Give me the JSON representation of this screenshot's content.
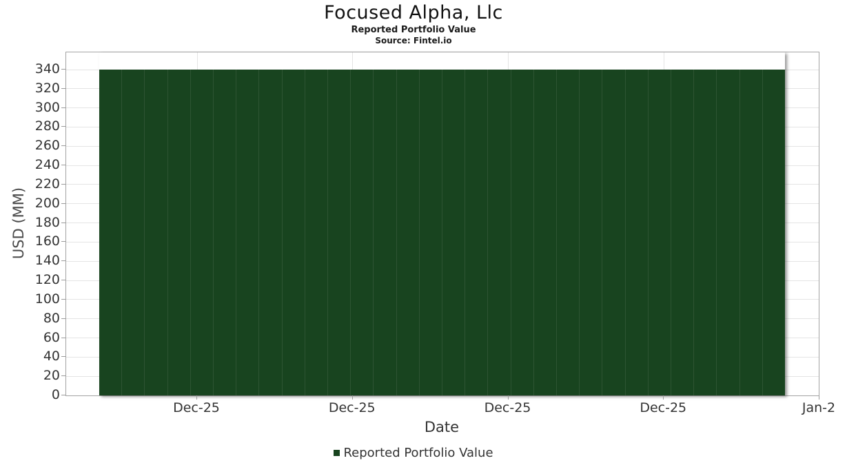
{
  "chart": {
    "title": "Focused Alpha, Llc",
    "subtitle": "Reported Portfolio Value",
    "source": "Source: Fintel.io",
    "xlabel": "Date",
    "ylabel": "USD (MM)",
    "legend_label": "Reported Portfolio Value",
    "colors": {
      "bar": "#18441f",
      "bar_separator": "#2e5433",
      "grid": "#e4e4e4",
      "axis": "#a3a3a3",
      "tick": "#9a9a9a",
      "text": "#333333"
    }
  },
  "chart_data": {
    "type": "bar",
    "title": "Focused Alpha, Llc",
    "subtitle": "Reported Portfolio Value",
    "source": "Source: Fintel.io",
    "xlabel": "Date",
    "ylabel": "USD (MM)",
    "ylim": [
      0,
      340
    ],
    "ytick_step": 20,
    "yticks": [
      0,
      20,
      40,
      60,
      80,
      100,
      120,
      140,
      160,
      180,
      200,
      220,
      240,
      260,
      280,
      300,
      320,
      340
    ],
    "xticks": [
      "Dec-25",
      "Dec-25",
      "Dec-25",
      "Dec-25",
      "Jan-2"
    ],
    "grid": true,
    "legend_position": "bottom",
    "series": [
      {
        "name": "Reported Portfolio Value",
        "color": "#18441f",
        "values": [
          340,
          340,
          340,
          340,
          340,
          340,
          340,
          340,
          340,
          340,
          340,
          340,
          340,
          340,
          340,
          340,
          340,
          340,
          340,
          340,
          340,
          340,
          340,
          340,
          340,
          340,
          340,
          340,
          340,
          340
        ]
      }
    ]
  }
}
